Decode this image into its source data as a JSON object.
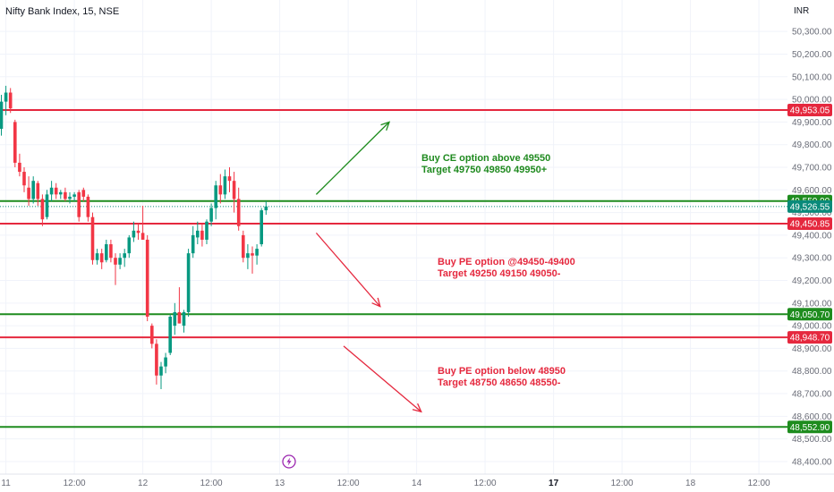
{
  "title": "Nifty Bank Index, 15, NSE",
  "currency": "INR",
  "colors": {
    "up": "#089981",
    "down": "#f23645",
    "support": "#1e8c1e",
    "resistance": "#e5283e",
    "current_price": "#0a8a7a",
    "grid": "#f0f3fa",
    "axis_text": "#6a6d78"
  },
  "chart_data": {
    "type": "candlestick",
    "title": "Nifty Bank Index, 15, NSE",
    "xlabel": "",
    "ylabel": "",
    "ylim": [
      48380,
      50360
    ],
    "yticks": [
      48400,
      48500,
      48600,
      48700,
      48800,
      48900,
      49000,
      49100,
      49200,
      49300,
      49400,
      49500,
      49600,
      49700,
      49800,
      49900,
      50000,
      50100,
      50200,
      50300
    ],
    "ytick_labels": [
      "48,400.00",
      "48,500.00",
      "48,600.00",
      "48,700.00",
      "48,800.00",
      "48,900.00",
      "49,000.00",
      "49,100.00",
      "49,200.00",
      "49,300.00",
      "49,400.00",
      "49,500.00",
      "49,600.00",
      "49,700.00",
      "49,800.00",
      "49,900.00",
      "50,000.00",
      "50,100.00",
      "50,200.00",
      "50,300.00"
    ],
    "xticks": [
      {
        "label": "11",
        "bar": 1,
        "bold": false
      },
      {
        "label": "12:00",
        "bar": 16,
        "bold": false
      },
      {
        "label": "12",
        "bar": 31,
        "bold": false
      },
      {
        "label": "12:00",
        "bar": 46,
        "bold": false
      },
      {
        "label": "13",
        "bar": 61,
        "bold": false
      },
      {
        "label": "12:00",
        "bar": 76,
        "bold": false
      },
      {
        "label": "14",
        "bar": 91,
        "bold": false
      },
      {
        "label": "12:00",
        "bar": 106,
        "bold": false
      },
      {
        "label": "17",
        "bar": 121,
        "bold": true
      },
      {
        "label": "12:00",
        "bar": 136,
        "bold": false
      },
      {
        "label": "18",
        "bar": 151,
        "bold": false
      },
      {
        "label": "12:00",
        "bar": 166,
        "bold": false
      }
    ],
    "candles": [
      {
        "o": 49870,
        "h": 50020,
        "l": 49840,
        "c": 49990
      },
      {
        "o": 49990,
        "h": 50060,
        "l": 49930,
        "c": 50030
      },
      {
        "o": 50030,
        "h": 50050,
        "l": 49940,
        "c": 49960
      },
      {
        "o": 49900,
        "h": 49910,
        "l": 49700,
        "c": 49720
      },
      {
        "o": 49720,
        "h": 49760,
        "l": 49660,
        "c": 49680
      },
      {
        "o": 49680,
        "h": 49700,
        "l": 49590,
        "c": 49620
      },
      {
        "o": 49610,
        "h": 49660,
        "l": 49530,
        "c": 49560
      },
      {
        "o": 49560,
        "h": 49660,
        "l": 49540,
        "c": 49640
      },
      {
        "o": 49630,
        "h": 49640,
        "l": 49530,
        "c": 49560
      },
      {
        "o": 49560,
        "h": 49580,
        "l": 49440,
        "c": 49470
      },
      {
        "o": 49480,
        "h": 49600,
        "l": 49470,
        "c": 49580
      },
      {
        "o": 49580,
        "h": 49640,
        "l": 49550,
        "c": 49610
      },
      {
        "o": 49610,
        "h": 49630,
        "l": 49560,
        "c": 49580
      },
      {
        "o": 49580,
        "h": 49600,
        "l": 49560,
        "c": 49590
      },
      {
        "o": 49590,
        "h": 49610,
        "l": 49550,
        "c": 49560
      },
      {
        "o": 49560,
        "h": 49590,
        "l": 49540,
        "c": 49570
      },
      {
        "o": 49570,
        "h": 49590,
        "l": 49550,
        "c": 49580
      },
      {
        "o": 49590,
        "h": 49600,
        "l": 49460,
        "c": 49480
      },
      {
        "o": 49600,
        "h": 49610,
        "l": 49550,
        "c": 49570
      },
      {
        "o": 49570,
        "h": 49580,
        "l": 49460,
        "c": 49480
      },
      {
        "o": 49480,
        "h": 49500,
        "l": 49270,
        "c": 49290
      },
      {
        "o": 49290,
        "h": 49340,
        "l": 49270,
        "c": 49320
      },
      {
        "o": 49320,
        "h": 49340,
        "l": 49250,
        "c": 49280
      },
      {
        "o": 49290,
        "h": 49380,
        "l": 49280,
        "c": 49360
      },
      {
        "o": 49360,
        "h": 49380,
        "l": 49280,
        "c": 49300
      },
      {
        "o": 49300,
        "h": 49320,
        "l": 49180,
        "c": 49270
      },
      {
        "o": 49270,
        "h": 49320,
        "l": 49250,
        "c": 49300
      },
      {
        "o": 49300,
        "h": 49340,
        "l": 49260,
        "c": 49320
      },
      {
        "o": 49320,
        "h": 49400,
        "l": 49300,
        "c": 49390
      },
      {
        "o": 49390,
        "h": 49460,
        "l": 49370,
        "c": 49420
      },
      {
        "o": 49420,
        "h": 49450,
        "l": 49380,
        "c": 49410
      },
      {
        "o": 49410,
        "h": 49530,
        "l": 49380,
        "c": 49380
      },
      {
        "o": 49380,
        "h": 49400,
        "l": 49020,
        "c": 49040
      },
      {
        "o": 49000,
        "h": 49010,
        "l": 48900,
        "c": 48920
      },
      {
        "o": 48920,
        "h": 48940,
        "l": 48740,
        "c": 48780
      },
      {
        "o": 48780,
        "h": 48840,
        "l": 48720,
        "c": 48820
      },
      {
        "o": 48820,
        "h": 48880,
        "l": 48790,
        "c": 48860
      },
      {
        "o": 48880,
        "h": 49050,
        "l": 48870,
        "c": 49040
      },
      {
        "o": 49000,
        "h": 49100,
        "l": 48960,
        "c": 49060
      },
      {
        "o": 49060,
        "h": 49170,
        "l": 49010,
        "c": 49010
      },
      {
        "o": 49000,
        "h": 49070,
        "l": 48970,
        "c": 49060
      },
      {
        "o": 49060,
        "h": 49340,
        "l": 49040,
        "c": 49320
      },
      {
        "o": 49320,
        "h": 49440,
        "l": 49300,
        "c": 49400
      },
      {
        "o": 49390,
        "h": 49460,
        "l": 49360,
        "c": 49420
      },
      {
        "o": 49420,
        "h": 49450,
        "l": 49350,
        "c": 49380
      },
      {
        "o": 49380,
        "h": 49470,
        "l": 49360,
        "c": 49460
      },
      {
        "o": 49460,
        "h": 49540,
        "l": 49440,
        "c": 49520
      },
      {
        "o": 49520,
        "h": 49640,
        "l": 49470,
        "c": 49620
      },
      {
        "o": 49620,
        "h": 49670,
        "l": 49540,
        "c": 49580
      },
      {
        "o": 49580,
        "h": 49690,
        "l": 49560,
        "c": 49660
      },
      {
        "o": 49660,
        "h": 49700,
        "l": 49590,
        "c": 49640
      },
      {
        "o": 49640,
        "h": 49680,
        "l": 49500,
        "c": 49560
      },
      {
        "o": 49560,
        "h": 49610,
        "l": 49420,
        "c": 49440
      },
      {
        "o": 49400,
        "h": 49420,
        "l": 49280,
        "c": 49300
      },
      {
        "o": 49300,
        "h": 49360,
        "l": 49250,
        "c": 49320
      },
      {
        "o": 49320,
        "h": 49350,
        "l": 49230,
        "c": 49310
      },
      {
        "o": 49310,
        "h": 49360,
        "l": 49270,
        "c": 49340
      },
      {
        "o": 49360,
        "h": 49520,
        "l": 49350,
        "c": 49510
      },
      {
        "o": 49510,
        "h": 49550,
        "l": 49490,
        "c": 49527
      }
    ],
    "levels": [
      {
        "price": 49953.05,
        "label": "49,953.05",
        "kind": "resistance",
        "style": "solid"
      },
      {
        "price": 49550.9,
        "label": "49,550.90",
        "kind": "support",
        "style": "solid"
      },
      {
        "price": 49526.55,
        "label": "49,526.55",
        "kind": "current",
        "style": "dotted"
      },
      {
        "price": 49450.85,
        "label": "49,450.85",
        "kind": "resistance",
        "style": "solid"
      },
      {
        "price": 49050.7,
        "label": "49,050.70",
        "kind": "support",
        "style": "solid"
      },
      {
        "price": 48948.7,
        "label": "48,948.70",
        "kind": "resistance",
        "style": "solid"
      },
      {
        "price": 48552.9,
        "label": "48,552.90",
        "kind": "support",
        "style": "solid"
      }
    ],
    "arrows": [
      {
        "from": {
          "bar": 69,
          "price": 49580
        },
        "to": {
          "bar": 85,
          "price": 49900
        },
        "kind": "up"
      },
      {
        "from": {
          "bar": 69,
          "price": 49410
        },
        "to": {
          "bar": 83,
          "price": 49085
        },
        "kind": "down"
      },
      {
        "from": {
          "bar": 75,
          "price": 48910
        },
        "to": {
          "bar": 92,
          "price": 48620
        },
        "kind": "down"
      }
    ],
    "grid": true,
    "legend": "none"
  },
  "annotations": [
    {
      "lines": [
        "Buy CE option above 49550",
        "Target 49750 49850 49950+"
      ],
      "kind": "green"
    },
    {
      "lines": [
        "Buy PE option @49450-49400",
        "Target 49250 49150 49050-"
      ],
      "kind": "red"
    },
    {
      "lines": [
        "Buy PE option below 48950",
        "Target 48750 48650 48550-"
      ],
      "kind": "red"
    }
  ],
  "event_icon": "lightning-event-icon"
}
